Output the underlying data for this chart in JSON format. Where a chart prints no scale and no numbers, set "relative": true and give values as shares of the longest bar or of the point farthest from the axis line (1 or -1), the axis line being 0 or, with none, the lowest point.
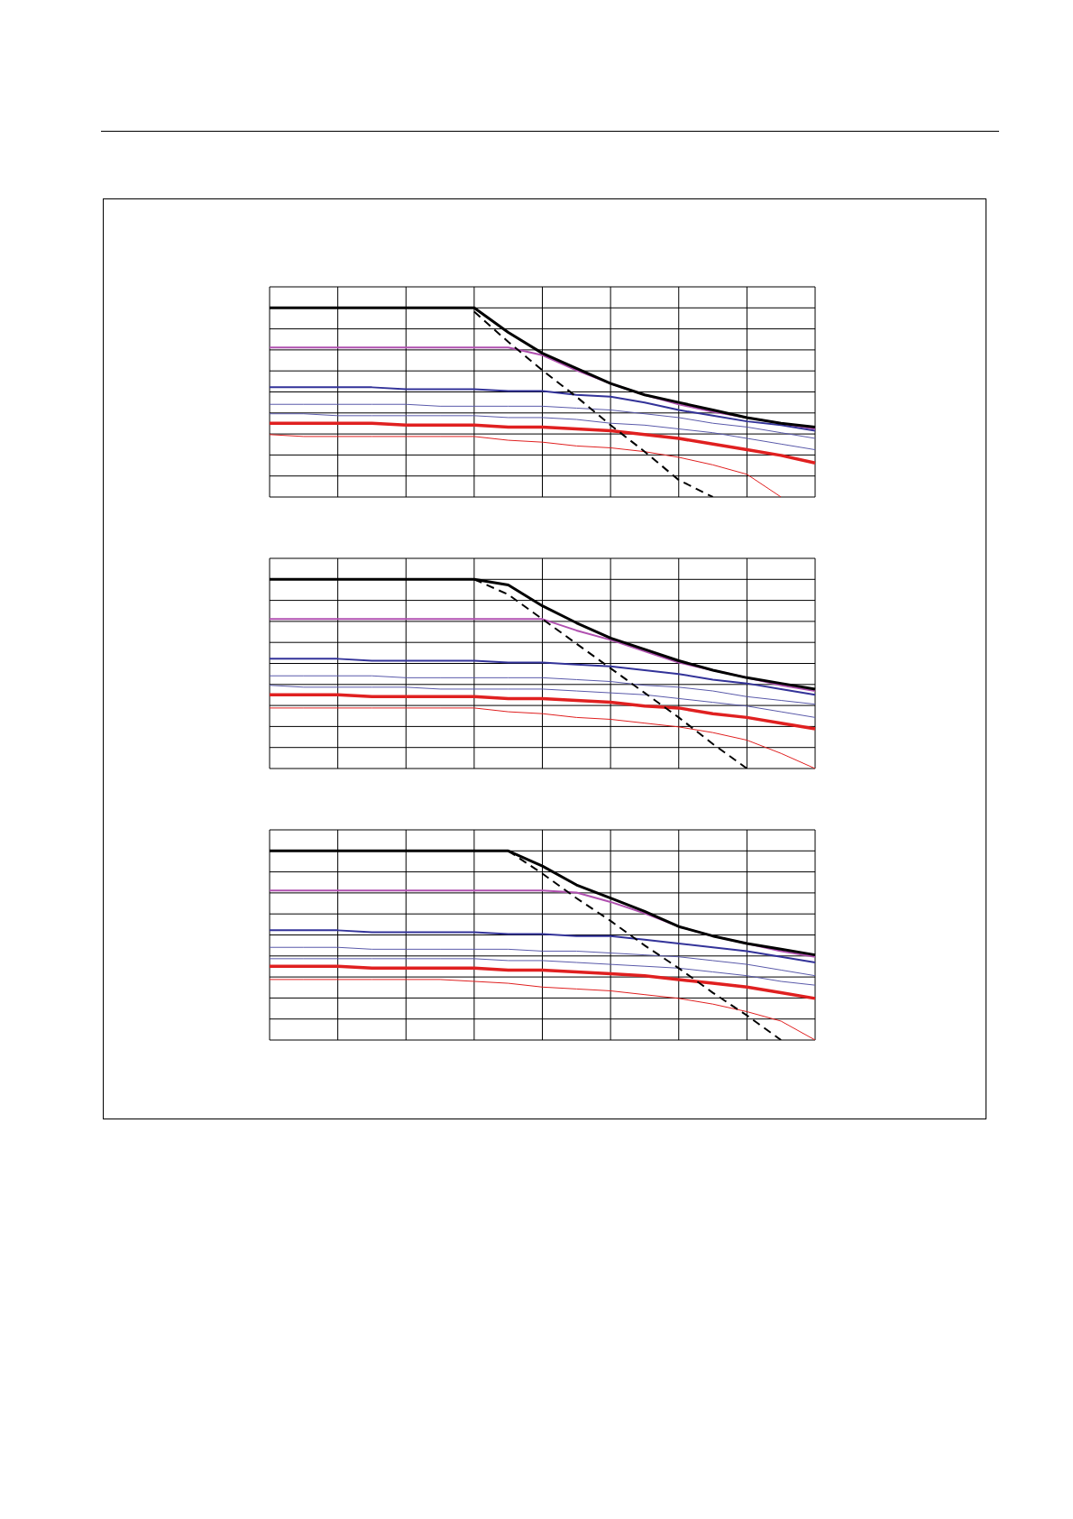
{
  "chart_data": [
    {
      "type": "line",
      "relative": true,
      "grid": true,
      "marker": "none",
      "categories": [
        null,
        null,
        null,
        null,
        null,
        null,
        null,
        null,
        null,
        null,
        null,
        null,
        null,
        null,
        null,
        null,
        null
      ],
      "series": [
        {
          "color": "#e02020",
          "values": [
            0.33,
            0.32,
            0.32,
            0.32,
            0.32,
            0.32,
            0.32,
            0.3,
            0.29,
            0.27,
            0.26,
            0.24,
            0.21,
            0.17,
            0.12,
            0,
            null
          ]
        },
        {
          "color": "#e02020",
          "values": [
            0.39,
            0.39,
            0.39,
            0.39,
            0.38,
            0.38,
            0.38,
            0.37,
            0.37,
            0.36,
            0.35,
            0.33,
            0.31,
            0.28,
            0.25,
            0.22,
            0.18
          ]
        },
        {
          "color": "#5a5aaa",
          "values": [
            0.44,
            0.44,
            0.43,
            0.43,
            0.43,
            0.43,
            0.43,
            0.42,
            0.42,
            0.41,
            0.39,
            0.38,
            0.36,
            0.34,
            0.31,
            0.28,
            0.25
          ]
        },
        {
          "color": "#5a5aaa",
          "values": [
            0.49,
            0.49,
            0.49,
            0.49,
            0.49,
            0.48,
            0.48,
            0.48,
            0.48,
            0.47,
            0.46,
            0.44,
            0.42,
            0.39,
            0.37,
            0.34,
            0.31
          ]
        },
        {
          "color": "#333399",
          "values": [
            0.58,
            0.58,
            0.58,
            0.58,
            0.57,
            0.57,
            0.57,
            0.56,
            0.56,
            0.54,
            0.53,
            0.5,
            0.46,
            0.43,
            0.4,
            0.38,
            0.35
          ]
        },
        {
          "color": "#b050b0",
          "values": [
            0.79,
            0.79,
            0.79,
            0.79,
            0.79,
            0.79,
            0.79,
            0.79,
            0.75,
            0.67,
            0.6,
            0.54,
            0.49,
            0.45,
            0.42,
            0.39,
            0.36
          ]
        },
        {
          "color": "#000000",
          "line_style": "dashed",
          "values": [
            null,
            null,
            null,
            null,
            null,
            null,
            0.98,
            0.82,
            0.67,
            0.53,
            0.38,
            0.24,
            0.09,
            0,
            null,
            null,
            null
          ]
        },
        {
          "color": "#000000",
          "values": [
            1,
            1,
            1,
            1,
            1,
            1,
            1,
            0.87,
            0.76,
            0.68,
            0.6,
            0.54,
            0.5,
            0.46,
            0.42,
            0.39,
            0.37
          ]
        }
      ]
    },
    {
      "type": "line",
      "relative": true,
      "grid": true,
      "marker": "none",
      "categories": [
        null,
        null,
        null,
        null,
        null,
        null,
        null,
        null,
        null,
        null,
        null,
        null,
        null,
        null,
        null,
        null,
        null
      ],
      "series": [
        {
          "color": "#e02020",
          "values": [
            0.32,
            0.32,
            0.32,
            0.32,
            0.32,
            0.32,
            0.32,
            0.3,
            0.29,
            0.27,
            0.26,
            0.24,
            0.22,
            0.19,
            0.15,
            0.08,
            0
          ]
        },
        {
          "color": "#e02020",
          "values": [
            0.39,
            0.39,
            0.39,
            0.38,
            0.38,
            0.38,
            0.38,
            0.37,
            0.37,
            0.36,
            0.35,
            0.33,
            0.32,
            0.29,
            0.27,
            0.24,
            0.21
          ]
        },
        {
          "color": "#5a5aaa",
          "values": [
            0.44,
            0.43,
            0.43,
            0.43,
            0.43,
            0.42,
            0.42,
            0.42,
            0.42,
            0.41,
            0.4,
            0.39,
            0.37,
            0.35,
            0.33,
            0.3,
            0.27
          ]
        },
        {
          "color": "#5a5aaa",
          "values": [
            0.49,
            0.49,
            0.49,
            0.49,
            0.48,
            0.48,
            0.48,
            0.48,
            0.48,
            0.47,
            0.46,
            0.44,
            0.43,
            0.41,
            0.38,
            0.36,
            0.34
          ]
        },
        {
          "color": "#333399",
          "values": [
            0.58,
            0.58,
            0.58,
            0.57,
            0.57,
            0.57,
            0.57,
            0.56,
            0.56,
            0.55,
            0.54,
            0.52,
            0.5,
            0.47,
            0.45,
            0.42,
            0.39
          ]
        },
        {
          "color": "#b050b0",
          "values": [
            0.79,
            0.79,
            0.79,
            0.79,
            0.79,
            0.79,
            0.79,
            0.79,
            0.79,
            0.73,
            0.68,
            0.62,
            0.56,
            0.52,
            0.48,
            0.44,
            0.41
          ]
        },
        {
          "color": "#000000",
          "line_style": "dashed",
          "values": [
            null,
            null,
            null,
            null,
            null,
            null,
            1,
            0.92,
            0.79,
            0.66,
            0.53,
            0.4,
            0.27,
            0.13,
            0,
            null,
            null
          ]
        },
        {
          "color": "#000000",
          "values": [
            1,
            1,
            1,
            1,
            1,
            1,
            1,
            0.97,
            0.86,
            0.77,
            0.69,
            0.63,
            0.57,
            0.52,
            0.48,
            0.45,
            0.42
          ]
        }
      ]
    },
    {
      "type": "line",
      "relative": true,
      "grid": true,
      "marker": "none",
      "categories": [
        null,
        null,
        null,
        null,
        null,
        null,
        null,
        null,
        null,
        null,
        null,
        null,
        null,
        null,
        null,
        null,
        null
      ],
      "series": [
        {
          "color": "#e02020",
          "values": [
            0.32,
            0.32,
            0.32,
            0.32,
            0.32,
            0.32,
            0.31,
            0.3,
            0.28,
            0.27,
            0.26,
            0.24,
            0.22,
            0.19,
            0.15,
            0.1,
            0
          ]
        },
        {
          "color": "#e02020",
          "values": [
            0.39,
            0.39,
            0.39,
            0.38,
            0.38,
            0.38,
            0.38,
            0.37,
            0.37,
            0.36,
            0.35,
            0.34,
            0.32,
            0.3,
            0.28,
            0.25,
            0.22
          ]
        },
        {
          "color": "#5a5aaa",
          "values": [
            0.43,
            0.43,
            0.43,
            0.43,
            0.43,
            0.43,
            0.43,
            0.42,
            0.42,
            0.41,
            0.4,
            0.39,
            0.38,
            0.36,
            0.34,
            0.31,
            0.29
          ]
        },
        {
          "color": "#5a5aaa",
          "values": [
            0.49,
            0.49,
            0.49,
            0.48,
            0.48,
            0.48,
            0.48,
            0.48,
            0.47,
            0.47,
            0.46,
            0.45,
            0.44,
            0.42,
            0.4,
            0.37,
            0.34
          ]
        },
        {
          "color": "#333399",
          "values": [
            0.58,
            0.58,
            0.58,
            0.57,
            0.57,
            0.57,
            0.57,
            0.56,
            0.56,
            0.55,
            0.55,
            0.53,
            0.51,
            0.49,
            0.47,
            0.44,
            0.41
          ]
        },
        {
          "color": "#b050b0",
          "values": [
            0.79,
            0.79,
            0.79,
            0.79,
            0.79,
            0.79,
            0.79,
            0.79,
            0.79,
            0.78,
            0.73,
            0.67,
            0.6,
            0.55,
            0.51,
            0.47,
            0.44
          ]
        },
        {
          "color": "#000000",
          "line_style": "dashed",
          "values": [
            null,
            null,
            null,
            null,
            null,
            null,
            null,
            1,
            0.88,
            0.75,
            0.63,
            0.5,
            0.38,
            0.25,
            0.13,
            0,
            null
          ]
        },
        {
          "color": "#000000",
          "values": [
            1,
            1,
            1,
            1,
            1,
            1,
            1,
            1,
            0.92,
            0.82,
            0.75,
            0.68,
            0.6,
            0.55,
            0.51,
            0.48,
            0.45
          ]
        }
      ]
    }
  ]
}
